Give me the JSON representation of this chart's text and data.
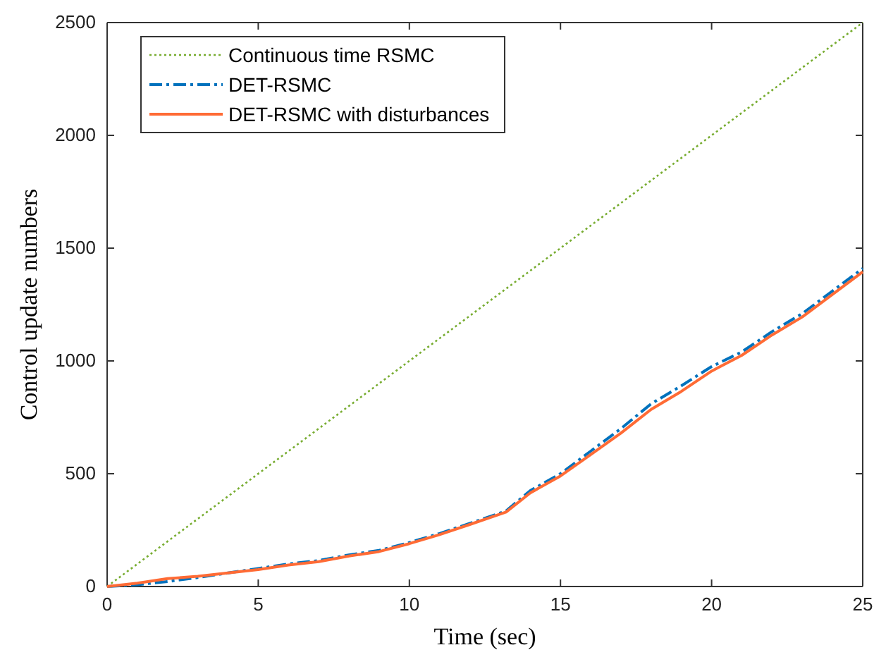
{
  "chart_data": {
    "type": "line",
    "xlabel": "Time (sec)",
    "ylabel": "Control update numbers",
    "xlim": [
      0,
      25
    ],
    "ylim": [
      0,
      2500
    ],
    "xticks": [
      0,
      5,
      10,
      15,
      20,
      25
    ],
    "yticks": [
      0,
      500,
      1000,
      1500,
      2000,
      2500
    ],
    "legend": "top left",
    "grid": false,
    "series": [
      {
        "name": "Continuous time RSMC",
        "color": "#77ac30",
        "line_style": "dotted",
        "x": [
          0,
          25
        ],
        "values": [
          0,
          2500
        ]
      },
      {
        "name": "DET-RSMC",
        "color": "#0072bd",
        "line_style": "dashed",
        "x": [
          0,
          1,
          2,
          3,
          4,
          5,
          6,
          7,
          8,
          9,
          10,
          11,
          12,
          13.2,
          14,
          15,
          16,
          17,
          18,
          19,
          20,
          21,
          22,
          23,
          24,
          25
        ],
        "values": [
          0,
          8,
          22,
          40,
          60,
          80,
          100,
          115,
          140,
          160,
          195,
          235,
          280,
          335,
          425,
          500,
          600,
          700,
          810,
          890,
          975,
          1040,
          1130,
          1210,
          1310,
          1410
        ]
      },
      {
        "name": "DET-RSMC with disturbances",
        "color": "#ff6b35",
        "line_style": "solid",
        "x": [
          0,
          1,
          2,
          3,
          4,
          5,
          6,
          7,
          8,
          9,
          10,
          11,
          12,
          13.2,
          14,
          15,
          16,
          17,
          18,
          19,
          20,
          21,
          22,
          23,
          24,
          25
        ],
        "values": [
          0,
          15,
          35,
          45,
          60,
          75,
          95,
          110,
          135,
          155,
          190,
          230,
          275,
          330,
          415,
          490,
          585,
          680,
          785,
          865,
          955,
          1025,
          1115,
          1195,
          1295,
          1395
        ]
      }
    ]
  }
}
